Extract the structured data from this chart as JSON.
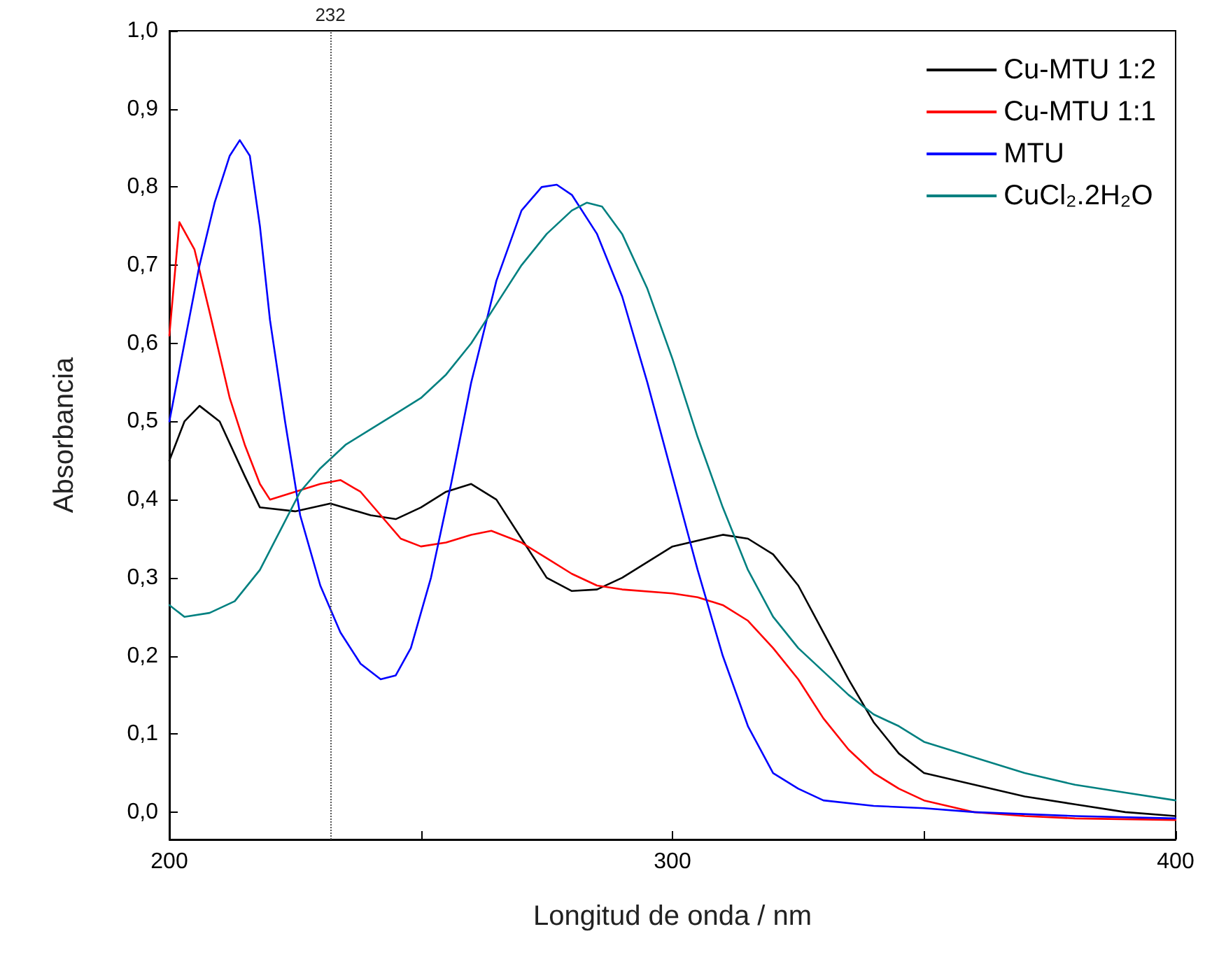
{
  "chart_data": {
    "type": "line",
    "xlabel": "Longitud de onda / nm",
    "ylabel": "Absorbancia",
    "xlim": [
      200,
      400
    ],
    "ylim": [
      -0.035,
      1.0
    ],
    "xticks": [
      200,
      {
        "value": 250,
        "label": null
      },
      300,
      {
        "value": 350,
        "label": null
      },
      400
    ],
    "yticks": [
      {
        "value": 0,
        "label": "0,0"
      },
      {
        "value": 0.1,
        "label": "0,1"
      },
      {
        "value": 0.2,
        "label": "0,2"
      },
      {
        "value": 0.3,
        "label": "0,3"
      },
      {
        "value": 0.4,
        "label": "0,4"
      },
      {
        "value": 0.5,
        "label": "0,5"
      },
      {
        "value": 0.6,
        "label": "0,6"
      },
      {
        "value": 0.7,
        "label": "0,7"
      },
      {
        "value": 0.8,
        "label": "0,8"
      },
      {
        "value": 0.9,
        "label": "0,9"
      },
      {
        "value": 1.0,
        "label": "1,0"
      }
    ],
    "grid": false,
    "legend": "top right",
    "marker": "none",
    "line_style": "solid",
    "ref_lines": [
      {
        "axis": "x",
        "value": 232,
        "label": "232",
        "line_style": "dotted",
        "color": "#555555"
      }
    ],
    "series": [
      {
        "name": "Cu-MTU 1:2",
        "color": "#000000",
        "x": [
          200,
          203,
          206,
          210,
          215,
          218,
          225,
          232,
          240,
          245,
          250,
          255,
          260,
          265,
          270,
          275,
          280,
          285,
          290,
          300,
          310,
          315,
          320,
          325,
          330,
          335,
          340,
          345,
          350,
          360,
          370,
          380,
          390,
          400
        ],
        "values": [
          0.45,
          0.5,
          0.52,
          0.5,
          0.43,
          0.39,
          0.385,
          0.395,
          0.38,
          0.375,
          0.39,
          0.41,
          0.42,
          0.4,
          0.35,
          0.3,
          0.283,
          0.285,
          0.3,
          0.34,
          0.355,
          0.35,
          0.33,
          0.29,
          0.23,
          0.17,
          0.115,
          0.075,
          0.05,
          0.035,
          0.02,
          0.01,
          0.0,
          -0.005
        ]
      },
      {
        "name": "Cu-MTU 1:1",
        "color": "#ff0000",
        "x": [
          200,
          202,
          205,
          208,
          212,
          215,
          218,
          220,
          225,
          230,
          234,
          238,
          242,
          246,
          250,
          255,
          260,
          264,
          270,
          275,
          280,
          285,
          290,
          300,
          305,
          310,
          315,
          320,
          325,
          330,
          335,
          340,
          345,
          350,
          360,
          370,
          380,
          400
        ],
        "values": [
          0.61,
          0.755,
          0.72,
          0.64,
          0.53,
          0.47,
          0.42,
          0.4,
          0.41,
          0.42,
          0.425,
          0.41,
          0.38,
          0.35,
          0.34,
          0.345,
          0.355,
          0.36,
          0.345,
          0.325,
          0.305,
          0.29,
          0.285,
          0.28,
          0.275,
          0.265,
          0.245,
          0.21,
          0.17,
          0.12,
          0.08,
          0.05,
          0.03,
          0.015,
          0.0,
          -0.005,
          -0.008,
          -0.01
        ]
      },
      {
        "name": "MTU",
        "color": "#0000ff",
        "x": [
          200,
          203,
          206,
          209,
          212,
          214,
          216,
          218,
          220,
          223,
          226,
          230,
          234,
          238,
          242,
          245,
          248,
          252,
          256,
          260,
          265,
          270,
          274,
          277,
          280,
          285,
          290,
          295,
          300,
          305,
          310,
          315,
          320,
          325,
          330,
          340,
          350,
          360,
          380,
          400
        ],
        "values": [
          0.5,
          0.6,
          0.7,
          0.78,
          0.84,
          0.86,
          0.84,
          0.75,
          0.63,
          0.5,
          0.38,
          0.29,
          0.23,
          0.19,
          0.17,
          0.175,
          0.21,
          0.3,
          0.42,
          0.55,
          0.68,
          0.77,
          0.8,
          0.803,
          0.79,
          0.74,
          0.66,
          0.55,
          0.43,
          0.31,
          0.2,
          0.11,
          0.05,
          0.03,
          0.015,
          0.008,
          0.005,
          0.0,
          -0.005,
          -0.008
        ]
      },
      {
        "name": "CuCl₂.2H₂O",
        "color": "#008080",
        "x": [
          200,
          203,
          208,
          213,
          218,
          222,
          226,
          230,
          235,
          240,
          245,
          250,
          255,
          260,
          265,
          270,
          275,
          280,
          283,
          286,
          290,
          295,
          300,
          305,
          310,
          315,
          320,
          325,
          330,
          335,
          340,
          345,
          350,
          360,
          370,
          380,
          390,
          400
        ],
        "values": [
          0.265,
          0.25,
          0.255,
          0.27,
          0.31,
          0.36,
          0.41,
          0.44,
          0.47,
          0.49,
          0.51,
          0.53,
          0.56,
          0.6,
          0.65,
          0.7,
          0.74,
          0.77,
          0.78,
          0.775,
          0.74,
          0.67,
          0.58,
          0.48,
          0.39,
          0.31,
          0.25,
          0.21,
          0.18,
          0.15,
          0.125,
          0.11,
          0.09,
          0.07,
          0.05,
          0.035,
          0.025,
          0.015
        ]
      }
    ]
  }
}
